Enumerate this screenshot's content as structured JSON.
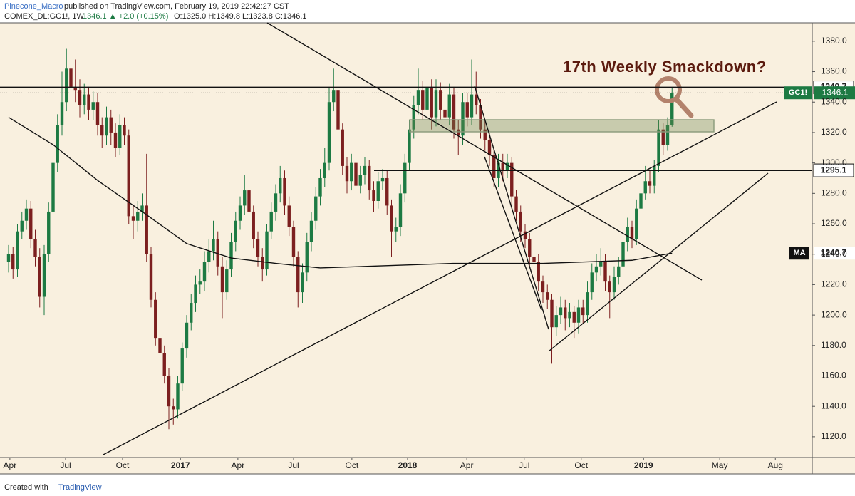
{
  "header": {
    "author": "Pinecone_Macro",
    "published": "published on TradingView.com, February 19, 2019 22:42:27 CST",
    "symbol": "COMEX_DL:GC1!, 1W",
    "change": "1346.1 ▲ +2.0 (+0.15%)",
    "ohlc": "O:1325.0 H:1349.8 L:1323.8 C:1346.1"
  },
  "footer": {
    "created": "Created with",
    "brand": "TradingView"
  },
  "chart_data": {
    "type": "candlestick",
    "annotation": "17th Weekly Smackdown?",
    "up_color": "#1d7a43",
    "down_color": "#7c1f1f",
    "open": [
      1235,
      1240,
      1230,
      1255,
      1262,
      1270,
      1250,
      1238,
      1212,
      1240,
      1268,
      1300,
      1325,
      1340,
      1362,
      1350,
      1348,
      1338,
      1345,
      1335,
      1340,
      1325,
      1318,
      1330,
      1320,
      1310,
      1325,
      1318,
      1265,
      1262,
      1268,
      1272,
      1240,
      1210,
      1185,
      1175,
      1160,
      1140,
      1138,
      1155,
      1178,
      1195,
      1208,
      1220,
      1222,
      1235,
      1242,
      1250,
      1232,
      1215,
      1230,
      1248,
      1262,
      1272,
      1282,
      1268,
      1250,
      1238,
      1230,
      1255,
      1268,
      1280,
      1290,
      1272,
      1258,
      1238,
      1215,
      1228,
      1248,
      1262,
      1278,
      1290,
      1300,
      1340,
      1348,
      1322,
      1298,
      1288,
      1300,
      1285,
      1292,
      1298,
      1282,
      1275,
      1288,
      1290,
      1272,
      1255,
      1258,
      1280,
      1300,
      1322,
      1338,
      1348,
      1335,
      1350,
      1330,
      1348,
      1335,
      1330,
      1345,
      1322,
      1318,
      1340,
      1330,
      1345,
      1338,
      1322,
      1315,
      1305,
      1290,
      1300,
      1295,
      1300,
      1278,
      1268,
      1255,
      1250,
      1238,
      1235,
      1222,
      1215,
      1210,
      1192,
      1200,
      1205,
      1198,
      1202,
      1195,
      1205,
      1200,
      1215,
      1228,
      1232,
      1235,
      1222,
      1215,
      1225,
      1232,
      1248,
      1258,
      1250,
      1270,
      1280,
      1288,
      1285,
      1298,
      1322,
      1312,
      1325
    ],
    "high": [
      1246,
      1245,
      1260,
      1268,
      1276,
      1275,
      1256,
      1244,
      1246,
      1274,
      1306,
      1332,
      1360,
      1375,
      1372,
      1368,
      1355,
      1352,
      1350,
      1347,
      1346,
      1330,
      1337,
      1335,
      1326,
      1332,
      1330,
      1322,
      1272,
      1275,
      1280,
      1306,
      1245,
      1215,
      1192,
      1180,
      1165,
      1145,
      1160,
      1182,
      1200,
      1214,
      1226,
      1230,
      1242,
      1250,
      1262,
      1255,
      1238,
      1236,
      1254,
      1268,
      1278,
      1292,
      1288,
      1272,
      1255,
      1244,
      1260,
      1274,
      1286,
      1298,
      1295,
      1278,
      1262,
      1242,
      1234,
      1254,
      1268,
      1284,
      1296,
      1310,
      1350,
      1362,
      1352,
      1326,
      1304,
      1306,
      1305,
      1298,
      1304,
      1302,
      1288,
      1294,
      1296,
      1295,
      1276,
      1264,
      1286,
      1306,
      1328,
      1344,
      1362,
      1354,
      1358,
      1355,
      1355,
      1353,
      1342,
      1352,
      1350,
      1328,
      1346,
      1346,
      1368,
      1360,
      1342,
      1328,
      1320,
      1310,
      1306,
      1306,
      1306,
      1304,
      1282,
      1272,
      1260,
      1254,
      1244,
      1240,
      1226,
      1220,
      1214,
      1206,
      1212,
      1210,
      1208,
      1206,
      1210,
      1210,
      1222,
      1234,
      1240,
      1244,
      1240,
      1226,
      1232,
      1238,
      1255,
      1264,
      1262,
      1276,
      1288,
      1298,
      1295,
      1302,
      1328,
      1326,
      1330,
      1349.8
    ],
    "low": [
      1228,
      1224,
      1225,
      1250,
      1256,
      1244,
      1232,
      1205,
      1200,
      1235,
      1262,
      1294,
      1318,
      1334,
      1342,
      1340,
      1330,
      1332,
      1328,
      1328,
      1318,
      1310,
      1312,
      1312,
      1304,
      1305,
      1312,
      1260,
      1250,
      1255,
      1262,
      1235,
      1205,
      1180,
      1168,
      1155,
      1125,
      1128,
      1132,
      1150,
      1172,
      1190,
      1202,
      1214,
      1216,
      1228,
      1236,
      1226,
      1198,
      1210,
      1225,
      1242,
      1256,
      1266,
      1262,
      1244,
      1232,
      1222,
      1226,
      1250,
      1262,
      1274,
      1266,
      1252,
      1232,
      1205,
      1208,
      1222,
      1242,
      1256,
      1272,
      1284,
      1295,
      1334,
      1316,
      1292,
      1280,
      1282,
      1278,
      1280,
      1286,
      1276,
      1268,
      1270,
      1282,
      1266,
      1238,
      1248,
      1252,
      1274,
      1295,
      1316,
      1332,
      1328,
      1330,
      1322,
      1324,
      1328,
      1322,
      1325,
      1316,
      1305,
      1312,
      1324,
      1325,
      1332,
      1316,
      1308,
      1298,
      1284,
      1284,
      1288,
      1290,
      1272,
      1262,
      1248,
      1244,
      1232,
      1228,
      1216,
      1208,
      1204,
      1168,
      1186,
      1194,
      1190,
      1192,
      1185,
      1188,
      1194,
      1195,
      1210,
      1222,
      1226,
      1216,
      1198,
      1210,
      1220,
      1228,
      1242,
      1244,
      1246,
      1266,
      1276,
      1280,
      1280,
      1294,
      1305,
      1308,
      1323.8
    ],
    "close": [
      1240,
      1230,
      1255,
      1262,
      1270,
      1250,
      1238,
      1212,
      1240,
      1268,
      1300,
      1325,
      1340,
      1362,
      1350,
      1348,
      1338,
      1345,
      1335,
      1340,
      1325,
      1318,
      1330,
      1320,
      1310,
      1325,
      1318,
      1265,
      1262,
      1268,
      1272,
      1240,
      1210,
      1185,
      1175,
      1160,
      1140,
      1138,
      1155,
      1178,
      1195,
      1208,
      1220,
      1222,
      1235,
      1242,
      1250,
      1232,
      1215,
      1230,
      1248,
      1262,
      1272,
      1282,
      1268,
      1250,
      1238,
      1230,
      1255,
      1268,
      1280,
      1290,
      1272,
      1258,
      1238,
      1215,
      1228,
      1248,
      1262,
      1278,
      1290,
      1300,
      1340,
      1348,
      1322,
      1298,
      1288,
      1300,
      1285,
      1292,
      1298,
      1282,
      1275,
      1288,
      1290,
      1272,
      1255,
      1258,
      1280,
      1300,
      1322,
      1338,
      1348,
      1335,
      1350,
      1330,
      1348,
      1335,
      1330,
      1345,
      1322,
      1318,
      1340,
      1330,
      1345,
      1338,
      1322,
      1315,
      1305,
      1290,
      1300,
      1295,
      1300,
      1278,
      1268,
      1255,
      1250,
      1238,
      1235,
      1222,
      1215,
      1210,
      1192,
      1200,
      1205,
      1198,
      1202,
      1195,
      1205,
      1200,
      1215,
      1228,
      1232,
      1235,
      1222,
      1215,
      1225,
      1232,
      1248,
      1258,
      1250,
      1270,
      1280,
      1288,
      1285,
      1298,
      1322,
      1312,
      1325,
      1346.1
    ],
    "last_name": "GC1!",
    "last_color": "#1d7a43",
    "ma": {
      "name": "MA",
      "x": [
        0,
        10,
        20,
        30,
        40,
        50,
        60,
        70,
        80,
        90,
        100,
        110,
        120,
        130,
        140,
        149
      ],
      "values": [
        1330,
        1312,
        1288.5,
        1268,
        1247,
        1237.5,
        1234,
        1231,
        1232,
        1233,
        1234,
        1234,
        1234,
        1235,
        1236,
        1240.7
      ]
    },
    "levels": [
      1349.7,
      1295.1
    ],
    "xlim": [
      -1.92,
      180.48
    ],
    "xticks": [
      {
        "value": 0.3,
        "label": "Apr"
      },
      {
        "value": 12.8,
        "label": "Jul"
      },
      {
        "value": 25.6,
        "label": "Oct"
      },
      {
        "value": 38.6,
        "label": "2017"
      },
      {
        "value": 51.5,
        "label": "Apr"
      },
      {
        "value": 64,
        "label": "Jul"
      },
      {
        "value": 77.1,
        "label": "Oct"
      },
      {
        "value": 89.6,
        "label": "2018"
      },
      {
        "value": 102.9,
        "label": "Apr"
      },
      {
        "value": 115.8,
        "label": "Jul"
      },
      {
        "value": 128.6,
        "label": "Oct"
      },
      {
        "value": 142.6,
        "label": "2019"
      },
      {
        "value": 159.7,
        "label": "May"
      },
      {
        "value": 172.2,
        "label": "Aug"
      }
    ],
    "ylim": [
      1107.3,
      1389.3
    ],
    "yticks": [
      {
        "value": 1120,
        "label": "1120.0"
      },
      {
        "value": 1140,
        "label": "1140.0"
      },
      {
        "value": 1160,
        "label": "1160.0"
      },
      {
        "value": 1180,
        "label": "1180.0"
      },
      {
        "value": 1200,
        "label": "1200.0"
      },
      {
        "value": 1220,
        "label": "1220.0"
      },
      {
        "value": 1240,
        "label": "1240.0"
      },
      {
        "value": 1260,
        "label": "1260.0"
      },
      {
        "value": 1280,
        "label": "1280.0"
      },
      {
        "value": 1300,
        "label": "1300.0"
      },
      {
        "value": 1320,
        "label": "1320.0"
      },
      {
        "value": 1340,
        "label": "1340.0"
      },
      {
        "value": 1360,
        "label": "1360.0"
      },
      {
        "value": 1380,
        "label": "1380.0"
      }
    ]
  }
}
